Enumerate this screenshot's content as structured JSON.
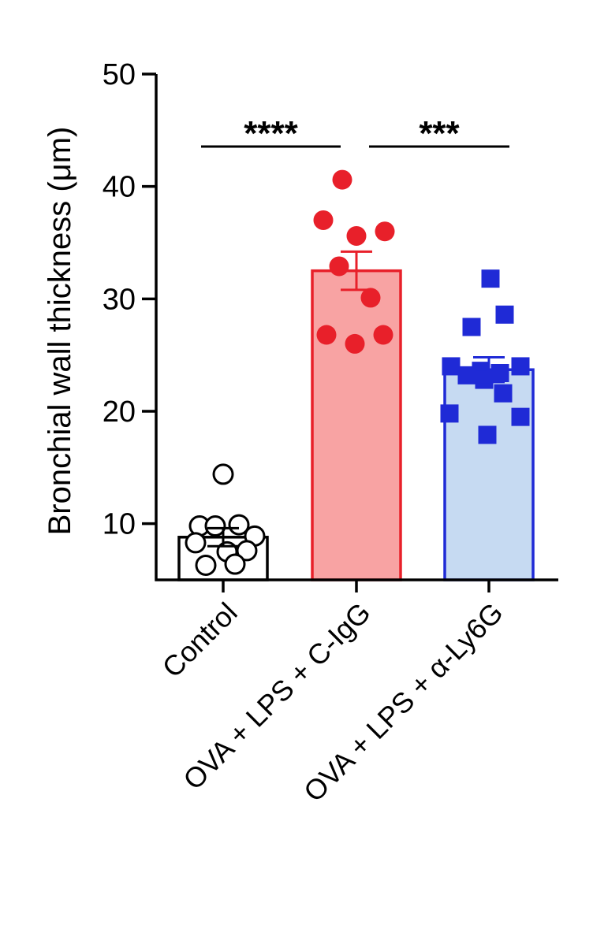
{
  "chart_data": {
    "type": "bar",
    "ylabel": "Bronchial wall thickness (μm)",
    "ylim": [
      5,
      50
    ],
    "yticks": [
      10,
      20,
      30,
      40,
      50
    ],
    "grid": false,
    "categories": [
      "Control",
      "OVA + LPS + C-IgG",
      "OVA + LPS + α-Ly6G"
    ],
    "values": [
      8.8,
      32.5,
      23.7
    ],
    "errors": [
      0.8,
      1.7,
      1.1
    ],
    "colors": {
      "fills": [
        "#ffffff",
        "#f8a3a3",
        "#c6daf2"
      ],
      "edges": [
        "#000000",
        "#e8202a",
        "#1f2ad6"
      ],
      "points": [
        "#000000",
        "#e8202a",
        "#1f2ad6"
      ]
    },
    "markers": [
      "open-circle",
      "filled-circle",
      "filled-square"
    ],
    "points": [
      [
        14.4,
        9.8,
        9.8,
        9.9,
        8.9,
        8.3,
        7.5,
        7.6,
        6.3,
        6.4
      ],
      [
        40.6,
        37.0,
        35.6,
        36.0,
        32.9,
        30.1,
        26.8,
        26.8,
        26.0
      ],
      [
        31.8,
        28.6,
        27.5,
        24.0,
        24.0,
        23.6,
        23.4,
        23.2,
        22.8,
        21.6,
        19.8,
        19.5,
        17.9
      ]
    ],
    "comparisons": [
      {
        "from": 0,
        "to": 1,
        "label": "****"
      },
      {
        "from": 1,
        "to": 2,
        "label": "***"
      }
    ]
  }
}
